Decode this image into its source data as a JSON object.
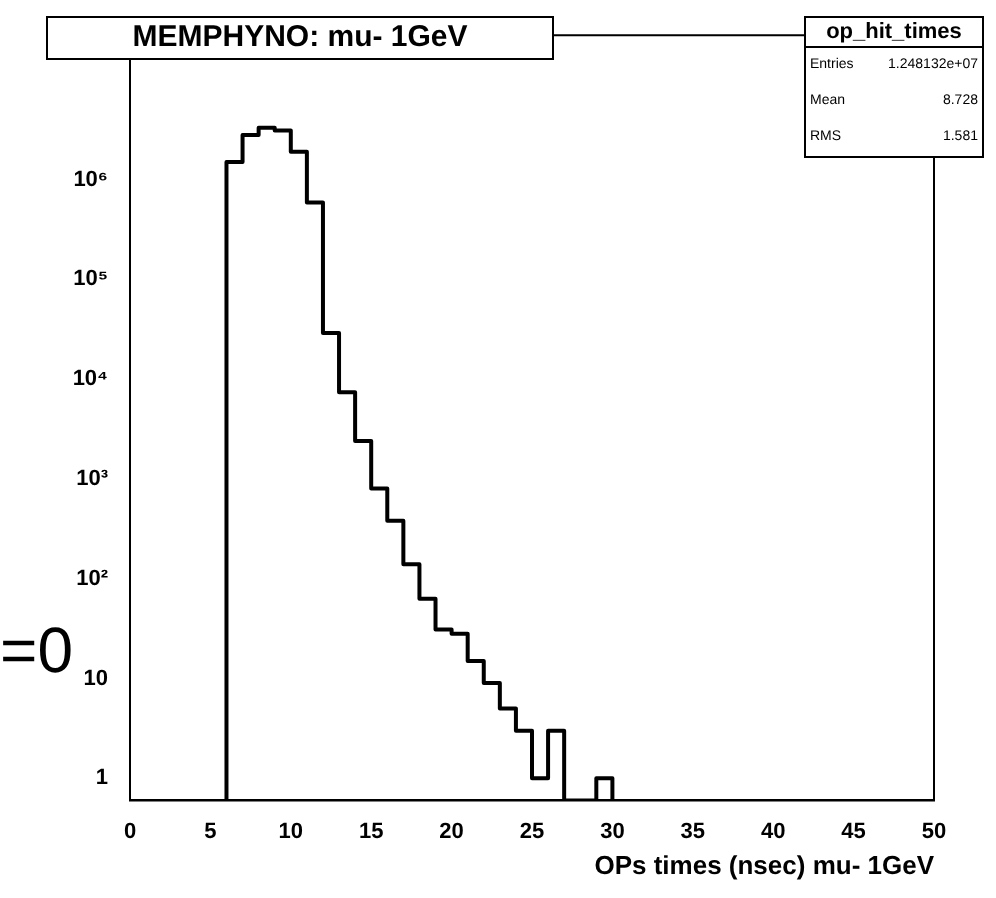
{
  "chart_data": {
    "type": "histogram",
    "title": "MEMPHYNO: mu- 1GeV",
    "xlabel": "OPs times (nsec) mu- 1GeV",
    "legend_title": "op_hit_times",
    "annotations": [
      "=0",
      "Entries",
      "1.248132e+07",
      "Mean",
      "8.728",
      "RMS",
      "1.581"
    ],
    "bins": [
      6,
      7,
      8,
      9,
      10,
      11,
      12,
      13,
      14,
      15,
      16,
      17,
      18,
      19,
      20,
      21,
      22,
      23,
      24,
      25,
      26,
      27,
      28,
      29,
      30
    ],
    "values": [
      1500000,
      2800000,
      3300000,
      3100000,
      1900000,
      590000,
      29000,
      7400,
      2400,
      800,
      380,
      140,
      63,
      31,
      28,
      15,
      9,
      5,
      3,
      1,
      3,
      null,
      null,
      1
    ],
    "color": "#000000",
    "xlim": [
      0,
      50
    ],
    "xticks": [
      0,
      5,
      10,
      15,
      20,
      25,
      30,
      35,
      40,
      45,
      50
    ],
    "ylim": [
      0.6,
      28000000
    ],
    "log": "y",
    "yticks": [
      1,
      10,
      {
        "value": 100,
        "label": "10²"
      },
      {
        "value": 1000,
        "label": "10³"
      },
      {
        "value": 10000,
        "label": "10⁴"
      },
      {
        "value": 100000,
        "label": "10⁵"
      },
      {
        "value": 1000000,
        "label": "10⁶"
      }
    ],
    "grid": false,
    "legend": false
  }
}
